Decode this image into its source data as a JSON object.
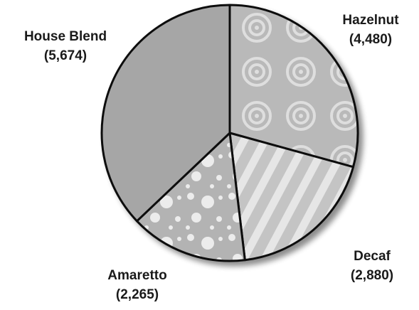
{
  "chart_data": {
    "type": "pie",
    "title": "",
    "slices": [
      {
        "label": "Hazelnut",
        "value": 4480,
        "value_label": "(4,480)",
        "pattern": "rings",
        "color": "#b9b9b9"
      },
      {
        "label": "Decaf",
        "value": 2880,
        "value_label": "(2,880)",
        "pattern": "stripes",
        "color": "#c4c4c4"
      },
      {
        "label": "Amaretto",
        "value": 2265,
        "value_label": "(2,265)",
        "pattern": "dots",
        "color": "#b3b3b3"
      },
      {
        "label": "House Blend",
        "value": 5674,
        "value_label": "(5,674)",
        "pattern": "solid",
        "color": "#a6a6a6"
      }
    ],
    "start": "top",
    "direction": "clockwise",
    "legend": "none",
    "colors": {
      "outline": "#111111",
      "shadow": "#888888"
    }
  }
}
